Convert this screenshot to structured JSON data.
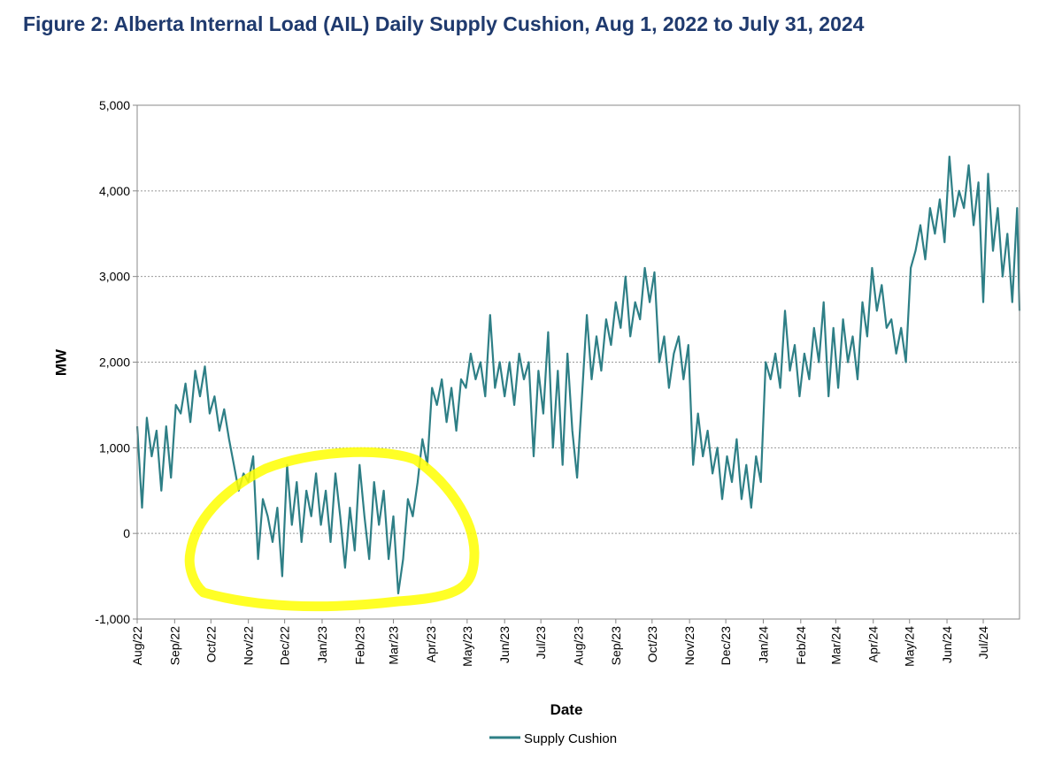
{
  "figure": {
    "title": "Figure 2: Alberta Internal Load (AIL) Daily Supply Cushion, Aug 1, 2022 to July 31, 2024"
  },
  "chart_data": {
    "type": "line",
    "title": "Figure 2: Alberta Internal Load (AIL) Daily Supply Cushion, Aug 1, 2022 to July 31, 2024",
    "xlabel": "Date",
    "ylabel": "MW",
    "ylim": [
      -1000,
      5000
    ],
    "yticks": [
      -1000,
      0,
      1000,
      2000,
      3000,
      4000,
      5000
    ],
    "ytick_labels": [
      "-1,000",
      "0",
      "1,000",
      "2,000",
      "3,000",
      "4,000",
      "5,000"
    ],
    "xlim": [
      "2022-08-01",
      "2024-07-31"
    ],
    "xtick_labels": [
      "Aug/22",
      "Sep/22",
      "Oct/22",
      "Nov/22",
      "Dec/22",
      "Jan/23",
      "Feb/23",
      "Mar/23",
      "Apr/23",
      "May/23",
      "Jun/23",
      "Jul/23",
      "Aug/23",
      "Sep/23",
      "Oct/23",
      "Nov/23",
      "Dec/23",
      "Jan/24",
      "Feb/24",
      "Mar/24",
      "Apr/24",
      "May/24",
      "Jun/24",
      "Jul/24"
    ],
    "grid": "horizontal dashed",
    "legend": "bottom-center",
    "annotation": "hand-drawn yellow circle around Nov/22 to Apr/23",
    "colors": {
      "line": "#2e7f86",
      "highlight": "#ffff00"
    },
    "series": [
      {
        "name": "Supply Cushion",
        "points": [
          [
            "2022-08-01",
            1250
          ],
          [
            "2022-08-05",
            300
          ],
          [
            "2022-08-09",
            1350
          ],
          [
            "2022-08-13",
            900
          ],
          [
            "2022-08-17",
            1200
          ],
          [
            "2022-08-21",
            500
          ],
          [
            "2022-08-25",
            1250
          ],
          [
            "2022-08-29",
            650
          ],
          [
            "2022-09-02",
            1500
          ],
          [
            "2022-09-06",
            1400
          ],
          [
            "2022-09-10",
            1750
          ],
          [
            "2022-09-14",
            1300
          ],
          [
            "2022-09-18",
            1900
          ],
          [
            "2022-09-22",
            1600
          ],
          [
            "2022-09-26",
            1950
          ],
          [
            "2022-09-30",
            1400
          ],
          [
            "2022-10-04",
            1600
          ],
          [
            "2022-10-08",
            1200
          ],
          [
            "2022-10-12",
            1450
          ],
          [
            "2022-10-16",
            1100
          ],
          [
            "2022-10-20",
            800
          ],
          [
            "2022-10-24",
            500
          ],
          [
            "2022-10-28",
            700
          ],
          [
            "2022-11-01",
            600
          ],
          [
            "2022-11-05",
            900
          ],
          [
            "2022-11-09",
            -300
          ],
          [
            "2022-11-13",
            400
          ],
          [
            "2022-11-17",
            200
          ],
          [
            "2022-11-21",
            -100
          ],
          [
            "2022-11-25",
            300
          ],
          [
            "2022-11-29",
            -500
          ],
          [
            "2022-12-03",
            800
          ],
          [
            "2022-12-07",
            100
          ],
          [
            "2022-12-11",
            600
          ],
          [
            "2022-12-15",
            -100
          ],
          [
            "2022-12-19",
            500
          ],
          [
            "2022-12-23",
            200
          ],
          [
            "2022-12-27",
            700
          ],
          [
            "2022-12-31",
            100
          ],
          [
            "2023-01-04",
            500
          ],
          [
            "2023-01-08",
            -100
          ],
          [
            "2023-01-12",
            700
          ],
          [
            "2023-01-16",
            200
          ],
          [
            "2023-01-20",
            -400
          ],
          [
            "2023-01-24",
            300
          ],
          [
            "2023-01-28",
            -200
          ],
          [
            "2023-02-01",
            800
          ],
          [
            "2023-02-05",
            200
          ],
          [
            "2023-02-09",
            -300
          ],
          [
            "2023-02-13",
            600
          ],
          [
            "2023-02-17",
            100
          ],
          [
            "2023-02-21",
            500
          ],
          [
            "2023-02-25",
            -300
          ],
          [
            "2023-03-01",
            200
          ],
          [
            "2023-03-05",
            -700
          ],
          [
            "2023-03-09",
            -300
          ],
          [
            "2023-03-13",
            400
          ],
          [
            "2023-03-17",
            200
          ],
          [
            "2023-03-21",
            600
          ],
          [
            "2023-03-25",
            1100
          ],
          [
            "2023-03-29",
            800
          ],
          [
            "2023-04-02",
            1700
          ],
          [
            "2023-04-06",
            1500
          ],
          [
            "2023-04-10",
            1800
          ],
          [
            "2023-04-14",
            1300
          ],
          [
            "2023-04-18",
            1700
          ],
          [
            "2023-04-22",
            1200
          ],
          [
            "2023-04-26",
            1800
          ],
          [
            "2023-04-30",
            1700
          ],
          [
            "2023-05-04",
            2100
          ],
          [
            "2023-05-08",
            1800
          ],
          [
            "2023-05-12",
            2000
          ],
          [
            "2023-05-16",
            1600
          ],
          [
            "2023-05-20",
            2550
          ],
          [
            "2023-05-24",
            1700
          ],
          [
            "2023-05-28",
            2000
          ],
          [
            "2023-06-01",
            1600
          ],
          [
            "2023-06-05",
            2000
          ],
          [
            "2023-06-09",
            1500
          ],
          [
            "2023-06-13",
            2100
          ],
          [
            "2023-06-17",
            1800
          ],
          [
            "2023-06-21",
            2000
          ],
          [
            "2023-06-25",
            900
          ],
          [
            "2023-06-29",
            1900
          ],
          [
            "2023-07-03",
            1400
          ],
          [
            "2023-07-07",
            2350
          ],
          [
            "2023-07-11",
            1000
          ],
          [
            "2023-07-15",
            1900
          ],
          [
            "2023-07-19",
            800
          ],
          [
            "2023-07-23",
            2100
          ],
          [
            "2023-07-27",
            1200
          ],
          [
            "2023-07-31",
            650
          ],
          [
            "2023-08-04",
            1600
          ],
          [
            "2023-08-08",
            2550
          ],
          [
            "2023-08-12",
            1800
          ],
          [
            "2023-08-16",
            2300
          ],
          [
            "2023-08-20",
            1900
          ],
          [
            "2023-08-24",
            2500
          ],
          [
            "2023-08-28",
            2200
          ],
          [
            "2023-09-01",
            2700
          ],
          [
            "2023-09-05",
            2400
          ],
          [
            "2023-09-09",
            3000
          ],
          [
            "2023-09-13",
            2300
          ],
          [
            "2023-09-17",
            2700
          ],
          [
            "2023-09-21",
            2500
          ],
          [
            "2023-09-25",
            3100
          ],
          [
            "2023-09-29",
            2700
          ],
          [
            "2023-10-03",
            3050
          ],
          [
            "2023-10-07",
            2000
          ],
          [
            "2023-10-11",
            2300
          ],
          [
            "2023-10-15",
            1700
          ],
          [
            "2023-10-19",
            2100
          ],
          [
            "2023-10-23",
            2300
          ],
          [
            "2023-10-27",
            1800
          ],
          [
            "2023-10-31",
            2200
          ],
          [
            "2023-11-04",
            800
          ],
          [
            "2023-11-08",
            1400
          ],
          [
            "2023-11-12",
            900
          ],
          [
            "2023-11-16",
            1200
          ],
          [
            "2023-11-20",
            700
          ],
          [
            "2023-11-24",
            1000
          ],
          [
            "2023-11-28",
            400
          ],
          [
            "2023-12-02",
            900
          ],
          [
            "2023-12-06",
            600
          ],
          [
            "2023-12-10",
            1100
          ],
          [
            "2023-12-14",
            400
          ],
          [
            "2023-12-18",
            800
          ],
          [
            "2023-12-22",
            300
          ],
          [
            "2023-12-26",
            900
          ],
          [
            "2023-12-30",
            600
          ],
          [
            "2024-01-03",
            2000
          ],
          [
            "2024-01-07",
            1800
          ],
          [
            "2024-01-11",
            2100
          ],
          [
            "2024-01-15",
            1700
          ],
          [
            "2024-01-19",
            2600
          ],
          [
            "2024-01-23",
            1900
          ],
          [
            "2024-01-27",
            2200
          ],
          [
            "2024-01-31",
            1600
          ],
          [
            "2024-02-04",
            2100
          ],
          [
            "2024-02-08",
            1800
          ],
          [
            "2024-02-12",
            2400
          ],
          [
            "2024-02-16",
            2000
          ],
          [
            "2024-02-20",
            2700
          ],
          [
            "2024-02-24",
            1600
          ],
          [
            "2024-02-28",
            2400
          ],
          [
            "2024-03-03",
            1700
          ],
          [
            "2024-03-07",
            2500
          ],
          [
            "2024-03-11",
            2000
          ],
          [
            "2024-03-15",
            2300
          ],
          [
            "2024-03-19",
            1800
          ],
          [
            "2024-03-23",
            2700
          ],
          [
            "2024-03-27",
            2300
          ],
          [
            "2024-03-31",
            3100
          ],
          [
            "2024-04-04",
            2600
          ],
          [
            "2024-04-08",
            2900
          ],
          [
            "2024-04-12",
            2400
          ],
          [
            "2024-04-16",
            2500
          ],
          [
            "2024-04-20",
            2100
          ],
          [
            "2024-04-24",
            2400
          ],
          [
            "2024-04-28",
            2000
          ],
          [
            "2024-05-02",
            3100
          ],
          [
            "2024-05-06",
            3300
          ],
          [
            "2024-05-10",
            3600
          ],
          [
            "2024-05-14",
            3200
          ],
          [
            "2024-05-18",
            3800
          ],
          [
            "2024-05-22",
            3500
          ],
          [
            "2024-05-26",
            3900
          ],
          [
            "2024-05-30",
            3400
          ],
          [
            "2024-06-03",
            4400
          ],
          [
            "2024-06-07",
            3700
          ],
          [
            "2024-06-11",
            4000
          ],
          [
            "2024-06-15",
            3800
          ],
          [
            "2024-06-19",
            4300
          ],
          [
            "2024-06-23",
            3600
          ],
          [
            "2024-06-27",
            4100
          ],
          [
            "2024-07-01",
            2700
          ],
          [
            "2024-07-05",
            4200
          ],
          [
            "2024-07-09",
            3300
          ],
          [
            "2024-07-13",
            3800
          ],
          [
            "2024-07-17",
            3000
          ],
          [
            "2024-07-21",
            3500
          ],
          [
            "2024-07-25",
            2700
          ],
          [
            "2024-07-29",
            3800
          ],
          [
            "2024-07-31",
            2600
          ]
        ]
      }
    ]
  }
}
